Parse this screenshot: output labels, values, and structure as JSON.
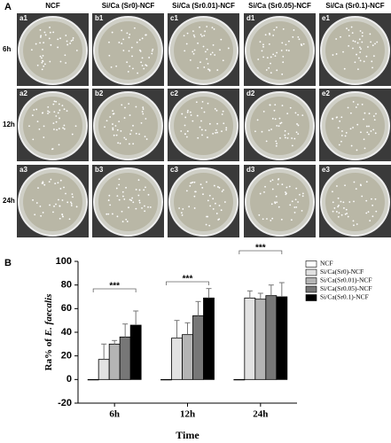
{
  "panel_a": {
    "label": "A",
    "columns": [
      "NCF",
      "Si/Ca (Sr0)-NCF",
      "Si/Ca (Sr0.01)-NCF",
      "Si/Ca (Sr0.05)-NCF",
      "Si/Ca (Sr0.1)-NCF"
    ],
    "rows": [
      "6h",
      "12h",
      "24h"
    ],
    "cells": [
      [
        "a1",
        "b1",
        "c1",
        "d1",
        "e1"
      ],
      [
        "a2",
        "b2",
        "c2",
        "d2",
        "e2"
      ],
      [
        "a3",
        "b3",
        "c3",
        "d3",
        "e3"
      ]
    ]
  },
  "chart_data": {
    "type": "bar",
    "label": "B",
    "ylabel": {
      "text": "Ra% of",
      "species": "E. faecalis"
    },
    "xlabel": "Time",
    "categories": [
      "6h",
      "12h",
      "24h"
    ],
    "series": [
      {
        "name": "NCF",
        "color": "#ffffff",
        "values": [
          0,
          0,
          0
        ]
      },
      {
        "name": "Si/Ca(Sr0)-NCF",
        "color": "#e2e2e2",
        "values": [
          17,
          35,
          69
        ],
        "errors": [
          13,
          15,
          6
        ]
      },
      {
        "name": "Si/Ca(Sr0.01)-NCF",
        "color": "#b4b4b4",
        "values": [
          30,
          38,
          68
        ],
        "errors": [
          3,
          10,
          5
        ]
      },
      {
        "name": "Si/Ca(Sr0.05)-NCF",
        "color": "#777777",
        "values": [
          36,
          54,
          71
        ],
        "errors": [
          11,
          12,
          9
        ]
      },
      {
        "name": "Si/Ca(Sr0.1)-NCF",
        "color": "#000000",
        "values": [
          46,
          69,
          70
        ],
        "errors": [
          12,
          8,
          12
        ]
      }
    ],
    "annotations": [
      "***",
      "***",
      "***"
    ],
    "ylim": [
      -20,
      100
    ],
    "yticks": [
      -20,
      0,
      20,
      40,
      60,
      80,
      100
    ],
    "legend": "upper right"
  }
}
